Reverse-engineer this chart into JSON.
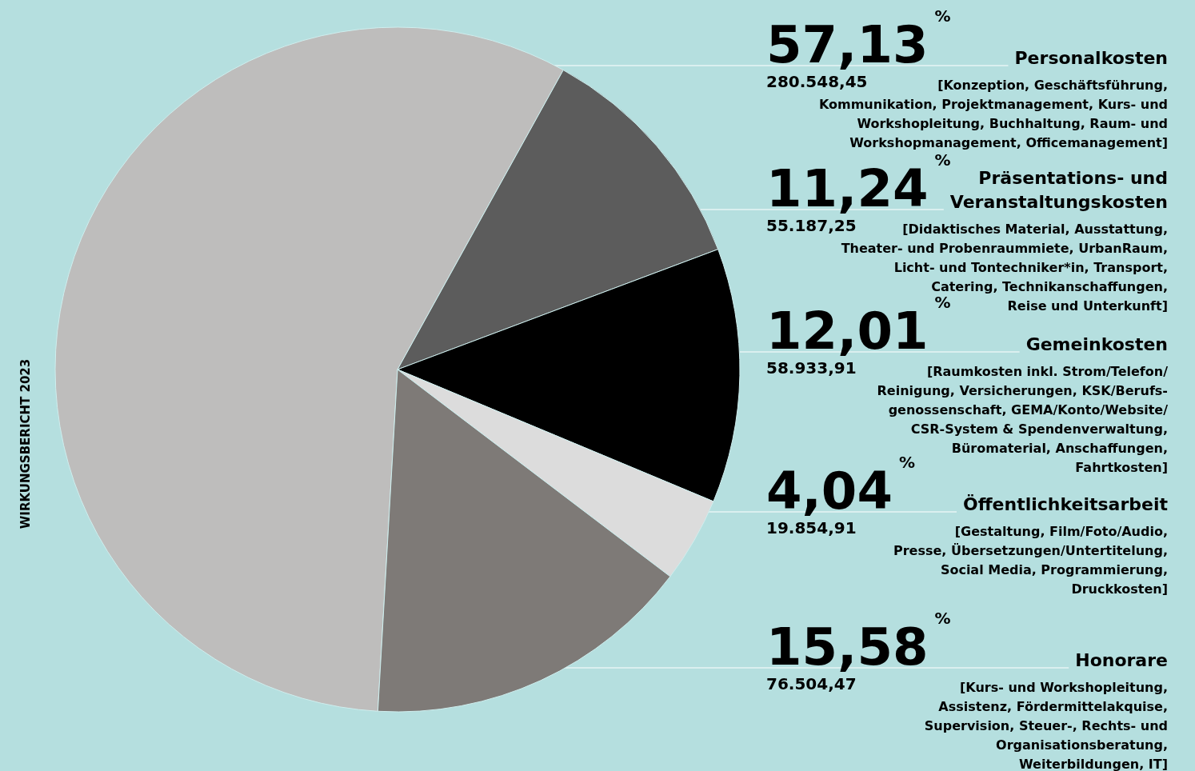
{
  "chart_data": {
    "type": "pie",
    "title": "WIRKUNGSBERICHT 2023",
    "categories": [
      "Personalkosten",
      "Präsentations- und\nVeranstaltungskosten",
      "Gemeinkosten",
      "Öffentlichkeitsarbeit",
      "Honorare"
    ],
    "values": [
      57.13,
      11.24,
      12.01,
      4.04,
      15.58
    ],
    "colors": [
      "#bebdbc",
      "#5c5c5c",
      "#000000",
      "#dcdcdc",
      "#7e7a77"
    ],
    "value_labels": [
      "57,13%",
      "11,24%",
      "12,01%",
      "4,04%",
      "15,58%"
    ],
    "annotations": [
      "280.548,45",
      "[Konzeption, Geschäftsführung,\nKommunikation, Projektmanagement, Kurs- und\nWorkshopleitung, Buchhaltung, Raum- und\nWorkshopmanagement, Officemanagement]",
      "55.187,25",
      "[Didaktisches Material, Ausstattung,\nTheater- und Probenraummiete, UrbanRaum,\nLicht- und Tontechniker*in, Transport,\nCatering, Technikanschaffungen,\nReise und Unterkunft]",
      "58.933,91",
      "[Raumkosten inkl. Strom/Telefon/\nReinigung, Versicherungen, KSK/Berufs-\ngenossenschaft, GEMA/Konto/Website/\nCSR-System & Spendenverwaltung,\nBüromaterial, Anschaffungen,\nFahrtkosten]",
      "19.854,91",
      "[Gestaltung, Film/Foto/Audio,\nPresse, Übersetzungen/Untertitelung,\nSocial Media, Programmierung,\nDruckkosten]",
      "76.504,47",
      "[Kurs- und Workshopleitung,\nAssistenz, Fördermittelakquise,\nSupervision, Steuer-, Rechts- und\nOrganisationsberatung,\nWeiterbildungen, IT]"
    ]
  }
}
